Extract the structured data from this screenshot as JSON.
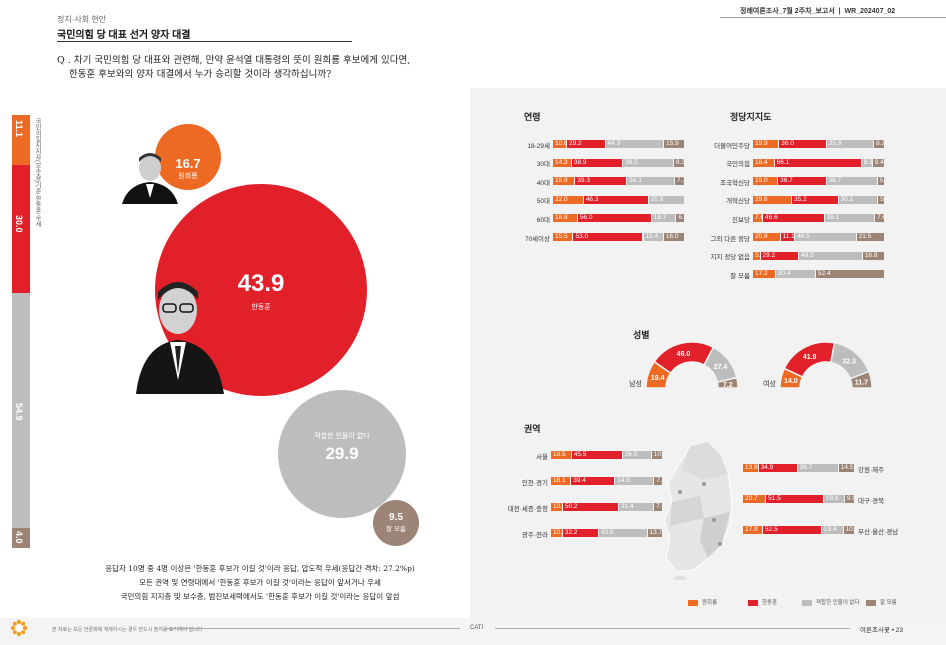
{
  "header": {
    "category": "정치·사회 현안",
    "title": "국민의힘 당 대표 선거 양자 대결",
    "report_name": "정례여론조사_7월 2주차_보고서",
    "report_code": "WR_202407_02"
  },
  "question": {
    "line1": "Q . 차기 국민의힘 당 대표와 관련해, 만약 윤석열 대통령의 뜻이 원희룡 후보에게 있다면,",
    "line2": "한동훈 후보와의 양자 대결에서 누가 승리할 것이라 생각하십니까?"
  },
  "left_bar": {
    "source_note": "국민의힘지지자(보수층)기준 한동훈 우세",
    "segments": [
      {
        "value": "11.1",
        "color": "#ed6a24"
      },
      {
        "value": "30.0",
        "color": "#e1202a"
      },
      {
        "value": "54.9",
        "color": "#bdbdbd"
      },
      {
        "value": "4.0",
        "color": "#9c8576"
      }
    ]
  },
  "bubbles": {
    "won": {
      "value": "16.7",
      "label": "원희룡"
    },
    "han": {
      "value": "43.9",
      "label": "한동훈"
    },
    "none": {
      "value": "29.9",
      "label": "적합한 인물이 없다"
    },
    "dk": {
      "value": "9.5",
      "label": "잘 모름"
    }
  },
  "summary": {
    "line1": "응답자 10명 중 4명 이상은 '한동훈 후보가 이길 것'이라 응답, 압도적 우세(응답간 격차: 27.2%p)",
    "line2": "모든 권역 및 연령대에서 '한동훈 후보가 이길 것'이라는 응답이 앞서거나 우세",
    "line3": "국민의힘 지지층 및 보수층, 범진보세력에서도 '한동훈 후보가 이길 것'이라는 응답이 앞섬"
  },
  "sections": {
    "age": "연령",
    "party": "정당지지도",
    "gender": "성별",
    "region": "권역"
  },
  "chart_data": [
    {
      "type": "bar",
      "title": "연령",
      "categories": [
        "18-29세",
        "30대",
        "40대",
        "50대",
        "60대",
        "70세이상"
      ],
      "series": [
        {
          "name": "원희룡",
          "values": [
            10.6,
            14.3,
            16.9,
            22.0,
            18.8,
            15.5
          ]
        },
        {
          "name": "한동훈",
          "values": [
            29.2,
            38.9,
            39.3,
            46.3,
            56.0,
            53.0
          ]
        },
        {
          "name": "적합한 인물이 없다",
          "values": [
            44.3,
            38.5,
            36.1,
            25.9,
            18.7,
            15.4
          ]
        },
        {
          "name": "잘 모름",
          "values": [
            15.9,
            8.3,
            7.7,
            null,
            6.5,
            16.0
          ]
        }
      ]
    },
    {
      "type": "bar",
      "title": "정당지지도",
      "categories": [
        "더불어민주당",
        "국민의힘",
        "조국혁신당",
        "개혁신당",
        "진보당",
        "그외 다른 정당",
        "지지 정당 없음",
        "잘 모름"
      ],
      "series": [
        {
          "name": "원희룡",
          "values": [
            19.9,
            16.4,
            19.0,
            29.6,
            7.6,
            20.9,
            5.7,
            17.2
          ]
        },
        {
          "name": "한동훈",
          "values": [
            36.0,
            66.1,
            36.7,
            35.2,
            46.6,
            11.1,
            29.2,
            null
          ]
        },
        {
          "name": "적합한 인물이 없다",
          "values": [
            35.9,
            8.3,
            38.7,
            30.1,
            38.1,
            46.5,
            48.3,
            30.4
          ]
        },
        {
          "name": "잘 모름",
          "values": [
            8.2,
            9.4,
            5.6,
            5.1,
            7.6,
            21.5,
            16.8,
            52.4
          ]
        }
      ]
    },
    {
      "type": "pie",
      "title": "성별",
      "categories": [
        "남성",
        "여성"
      ],
      "series": [
        {
          "name": "원희룡",
          "values": [
            19.4,
            14.0
          ]
        },
        {
          "name": "한동훈",
          "values": [
            46.0,
            41.9
          ]
        },
        {
          "name": "적합한 인물이 없다",
          "values": [
            27.4,
            32.3
          ]
        },
        {
          "name": "잘 모름",
          "values": [
            7.2,
            11.7
          ]
        }
      ]
    },
    {
      "type": "bar",
      "title": "권역",
      "categories": [
        "서울",
        "인천·경기",
        "대전·세종·충청",
        "광주·전라",
        "강원·제주",
        "대구·경북",
        "부산·울산·경남"
      ],
      "series": [
        {
          "name": "원희룡",
          "values": [
            18.5,
            18.1,
            10.6,
            10.5,
            13.9,
            20.7,
            17.9
          ]
        },
        {
          "name": "한동훈",
          "values": [
            45.5,
            39.4,
            50.2,
            32.2,
            34.9,
            51.5,
            52.5
          ]
        },
        {
          "name": "적합한 인물이 없다",
          "values": [
            26.0,
            34.8,
            31.4,
            43.6,
            36.7,
            18.8,
            19.4
          ]
        },
        {
          "name": "잘 모름",
          "values": [
            10.0,
            7.7,
            7.9,
            13.7,
            14.5,
            9.0,
            10.2
          ]
        }
      ]
    }
  ],
  "legend": [
    "원희룡",
    "한동훈",
    "적합한 인물이 없다",
    "잘 모름"
  ],
  "footer": {
    "left": "본 자료는 모든 언론매체 계재하시는 경우 반드시 출처를 표기해야 합니다",
    "center": "CATI",
    "right": "여론조사꽃 • 23"
  },
  "colors": {
    "won": "#ed6a24",
    "han": "#e1202a",
    "none": "#bdbdbd",
    "dk": "#9c8576"
  }
}
